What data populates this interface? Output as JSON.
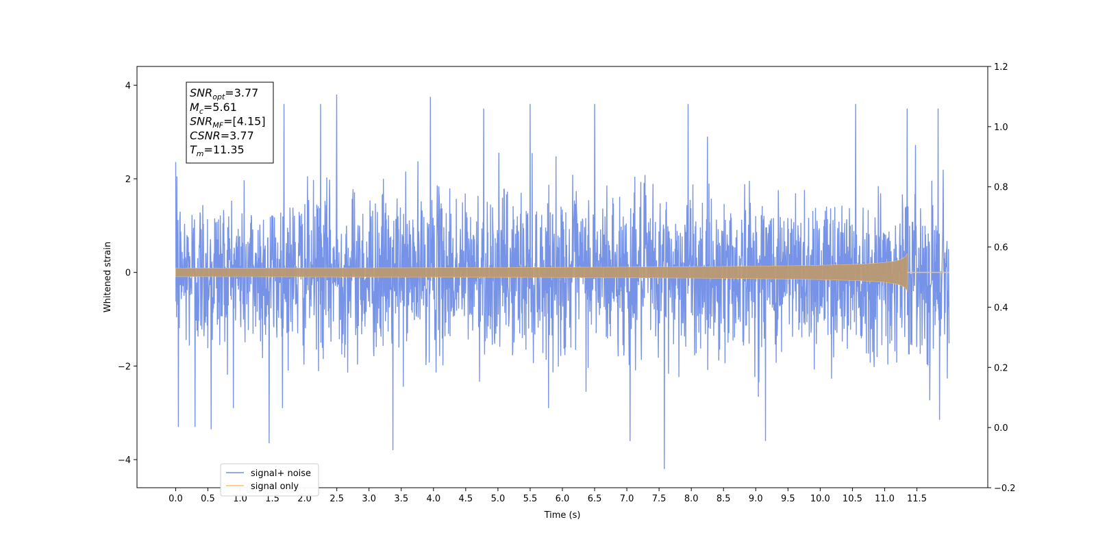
{
  "chart_data": {
    "type": "line",
    "title": "",
    "xlabel": "Time (s)",
    "ylabel": "Whitened strain",
    "xlim": [
      -0.6,
      12.6
    ],
    "ylim": [
      -4.6,
      4.4
    ],
    "y2lim": [
      -0.2,
      1.2
    ],
    "x_ticks": [
      0.0,
      0.5,
      1.0,
      1.5,
      2.0,
      2.5,
      3.0,
      3.5,
      4.0,
      4.5,
      5.0,
      5.5,
      6.0,
      6.5,
      7.0,
      7.5,
      8.0,
      8.5,
      9.0,
      9.5,
      10.0,
      10.5,
      11.0,
      11.5
    ],
    "x_tick_labels": [
      "0.0",
      "0.5",
      "1.0",
      "1.5",
      "2.0",
      "2.5",
      "3.0",
      "3.5",
      "4.0",
      "4.5",
      "5.0",
      "5.5",
      "6.0",
      "6.5",
      "7.0",
      "7.5",
      "8.0",
      "8.5",
      "9.0",
      "9.5",
      "10.0",
      "10.5",
      "11.0",
      "11.5"
    ],
    "y_ticks": [
      -4,
      -2,
      0,
      2,
      4
    ],
    "y_tick_labels": [
      "−4",
      "−2",
      "0",
      "2",
      "4"
    ],
    "y2_ticks": [
      -0.2,
      0.0,
      0.2,
      0.4,
      0.6,
      0.8,
      1.0,
      1.2
    ],
    "y2_tick_labels": [
      "−0.2",
      "0.0",
      "0.2",
      "0.4",
      "0.6",
      "0.8",
      "1.0",
      "1.2"
    ],
    "grid": false,
    "legend_position": "bottom-left",
    "series": [
      {
        "name": "signal+ noise",
        "color": "#6f8de6",
        "x_range": [
          0.0,
          12.0
        ],
        "typical_envelope": [
          -1.6,
          1.6
        ],
        "notable_peaks": [
          [
            0.02,
            2.05
          ],
          [
            0.04,
            -3.3
          ],
          [
            0.3,
            -3.3
          ],
          [
            0.55,
            -3.35
          ],
          [
            1.45,
            -3.65
          ],
          [
            1.68,
            3.6
          ],
          [
            2.25,
            3.6
          ],
          [
            2.5,
            3.8
          ],
          [
            3.37,
            -3.8
          ],
          [
            3.95,
            3.75
          ],
          [
            4.78,
            3.5
          ],
          [
            5.5,
            3.6
          ],
          [
            6.5,
            3.6
          ],
          [
            7.05,
            -3.6
          ],
          [
            7.58,
            -4.2
          ],
          [
            7.95,
            3.6
          ],
          [
            9.15,
            -3.6
          ],
          [
            10.55,
            3.6
          ],
          [
            11.35,
            3.5
          ],
          [
            11.83,
            3.5
          ],
          [
            11.85,
            -3.15
          ]
        ]
      },
      {
        "name": "signal only",
        "color": "#f5c26b",
        "x_range": [
          0.0,
          12.0
        ],
        "merger_time": 11.35,
        "peak_amplitude": 0.4
      }
    ],
    "annotation": [
      {
        "name": "SNR",
        "sub": "opt",
        "value": "=3.77"
      },
      {
        "name": "M",
        "sub": "c",
        "value": "=5.61"
      },
      {
        "name": "SNR",
        "sub": "MF",
        "value": "=[4.15]"
      },
      {
        "name": "CSNR",
        "sub": "",
        "value": "=3.77"
      },
      {
        "name": "T",
        "sub": "m",
        "value": "=11.35"
      }
    ]
  }
}
